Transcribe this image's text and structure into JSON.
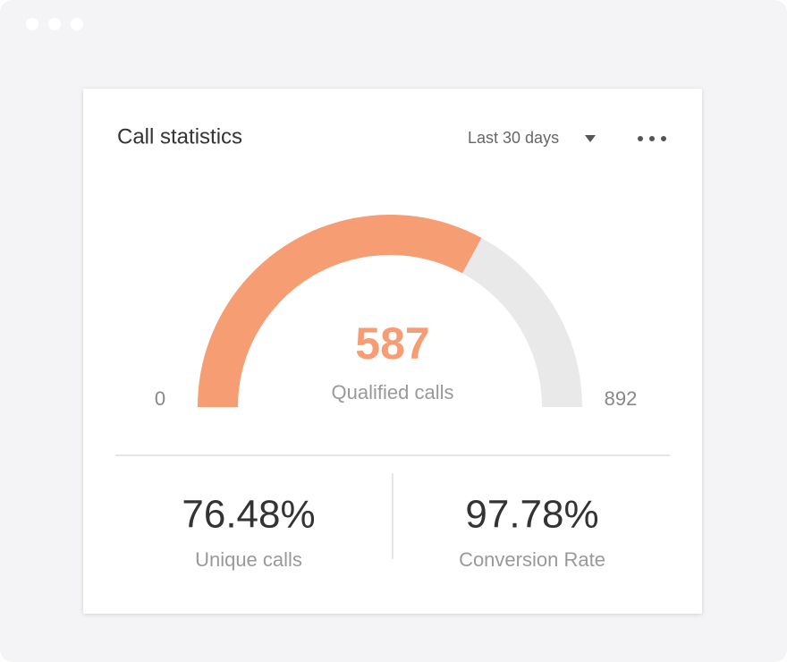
{
  "card": {
    "title": "Call statistics",
    "period": "Last 30 days"
  },
  "gauge": {
    "value": 587,
    "label": "Qualified calls",
    "min": 0,
    "max": 892,
    "color": "#f79d73",
    "track_color": "#e8e9e8"
  },
  "stats": [
    {
      "value": "76.48%",
      "label": "Unique calls"
    },
    {
      "value": "97.78%",
      "label": "Conversion Rate"
    }
  ]
}
